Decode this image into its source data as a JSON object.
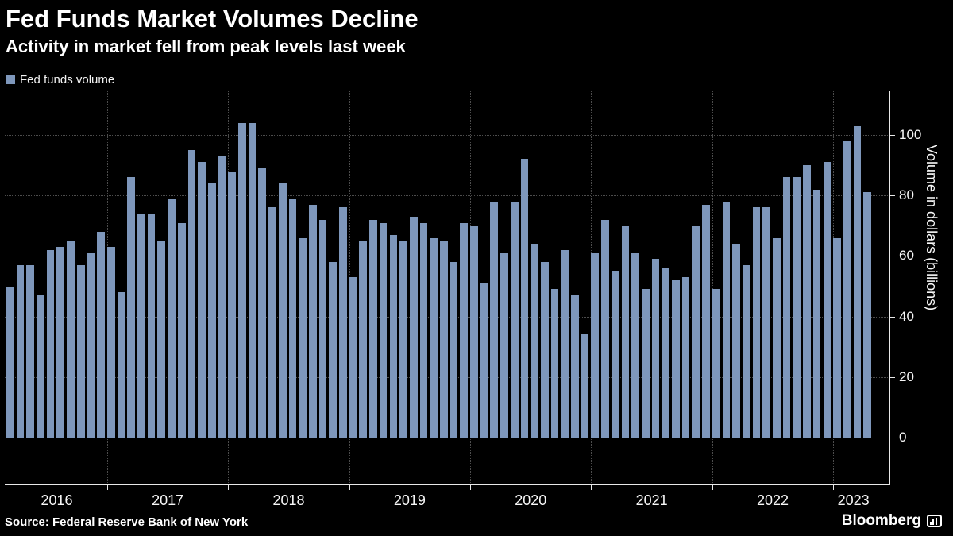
{
  "header": {
    "title": "Fed Funds Market Volumes Decline",
    "subtitle": "Activity in market fell from peak levels last week"
  },
  "legend": {
    "label": "Fed funds volume",
    "swatch_color": "#7e97bb"
  },
  "source": "Source: Federal Reserve Bank of New York",
  "brand": {
    "name": "Bloomberg"
  },
  "colors": {
    "background": "#000000",
    "bar": "#7e97bb",
    "gridline": "#4d4d4d",
    "axis": "#e8e8e8",
    "text": "#ffffff"
  },
  "chart_data": {
    "type": "bar",
    "title": "Fed Funds Market Volumes Decline",
    "subtitle": "Activity in market fell from peak levels last week",
    "series_name": "Fed funds volume",
    "xlabel": "",
    "ylabel": "Volume in dollars (billions)",
    "ylim": [
      0,
      114
    ],
    "yticks": [
      0,
      20,
      40,
      60,
      80,
      100
    ],
    "grid": "dotted",
    "legend_position": "top-left",
    "bar_color": "#7e97bb",
    "years": [
      {
        "label": "2016",
        "bars": 10
      },
      {
        "label": "2017",
        "bars": 12
      },
      {
        "label": "2018",
        "bars": 12
      },
      {
        "label": "2019",
        "bars": 12
      },
      {
        "label": "2020",
        "bars": 12
      },
      {
        "label": "2021",
        "bars": 12
      },
      {
        "label": "2022",
        "bars": 12
      },
      {
        "label": "2023",
        "bars": 4
      }
    ],
    "values": [
      50,
      57,
      57,
      47,
      62,
      63,
      65,
      57,
      61,
      68,
      63,
      48,
      86,
      74,
      74,
      65,
      79,
      71,
      95,
      91,
      84,
      93,
      88,
      104,
      104,
      89,
      76,
      84,
      79,
      66,
      77,
      72,
      58,
      76,
      53,
      65,
      72,
      71,
      67,
      65,
      73,
      71,
      66,
      65,
      58,
      71,
      70,
      51,
      78,
      61,
      78,
      92,
      64,
      58,
      49,
      62,
      47,
      34,
      61,
      72,
      55,
      70,
      61,
      49,
      59,
      56,
      52,
      53,
      70,
      77,
      49,
      78,
      64,
      57,
      76,
      76,
      66,
      86,
      86,
      90,
      82,
      91,
      66,
      98,
      103,
      81
    ]
  }
}
